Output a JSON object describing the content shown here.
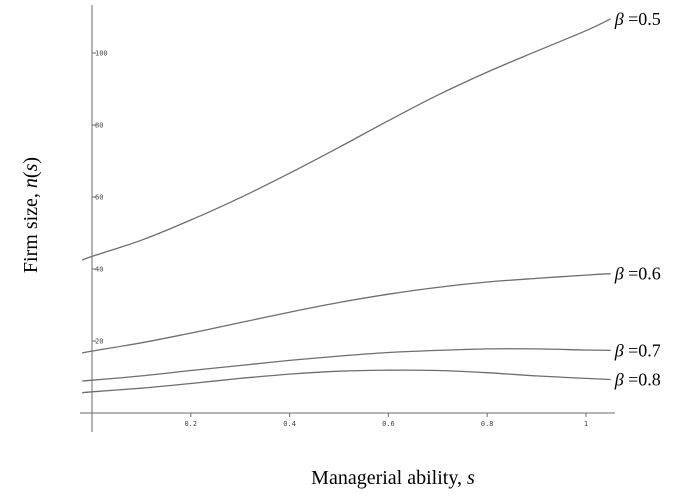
{
  "chart_data": {
    "type": "line",
    "title": "",
    "xlabel": {
      "text": "Managerial ability, ",
      "var": "s"
    },
    "ylabel": {
      "pre": "Firm size, ",
      "var1": "n",
      "mid": "(",
      "var2": "s",
      "post": ")"
    },
    "xlim": [
      0,
      1.05
    ],
    "ylim": [
      -2,
      116
    ],
    "xticks": [
      0.2,
      0.4,
      0.6,
      0.8,
      1
    ],
    "xtick_labels": [
      "0.2",
      "0.4",
      "0.6",
      "0.8",
      "1"
    ],
    "yticks": [
      20,
      40,
      60,
      80,
      100
    ],
    "ytick_labels": [
      "20",
      "40",
      "60",
      "80",
      "100"
    ],
    "grid": false,
    "legend": "none",
    "series": [
      {
        "label_symbol": "β",
        "label_value": "=0.5",
        "x": [
          -0.02,
          0.0,
          0.1,
          0.2,
          0.3,
          0.4,
          0.5,
          0.6,
          0.7,
          0.8,
          0.9,
          1.0,
          1.05
        ],
        "values": [
          42.5,
          43.5,
          48.0,
          53.6,
          59.8,
          66.6,
          73.8,
          81.2,
          88.3,
          94.7,
          100.5,
          106.2,
          109.5
        ]
      },
      {
        "label_symbol": "β",
        "label_value": "=0.6",
        "x": [
          -0.02,
          0.0,
          0.1,
          0.2,
          0.3,
          0.4,
          0.5,
          0.6,
          0.7,
          0.8,
          0.9,
          1.0,
          1.05
        ],
        "values": [
          16.7,
          17.2,
          19.5,
          22.2,
          25.1,
          28.0,
          30.7,
          33.0,
          34.9,
          36.4,
          37.4,
          38.3,
          38.7
        ]
      },
      {
        "label_symbol": "β",
        "label_value": "=0.7",
        "x": [
          -0.02,
          0.0,
          0.1,
          0.2,
          0.3,
          0.4,
          0.5,
          0.6,
          0.7,
          0.8,
          0.9,
          1.0,
          1.05
        ],
        "values": [
          8.9,
          9.1,
          10.3,
          11.8,
          13.2,
          14.6,
          15.8,
          16.8,
          17.4,
          17.8,
          17.8,
          17.5,
          17.4
        ]
      },
      {
        "label_symbol": "β",
        "label_value": "=0.8",
        "x": [
          -0.02,
          0.0,
          0.1,
          0.2,
          0.3,
          0.4,
          0.5,
          0.6,
          0.7,
          0.8,
          0.9,
          1.0,
          1.05
        ],
        "values": [
          5.6,
          5.9,
          6.9,
          8.2,
          9.6,
          10.8,
          11.6,
          11.9,
          11.8,
          11.2,
          10.3,
          9.6,
          9.3
        ]
      }
    ]
  }
}
